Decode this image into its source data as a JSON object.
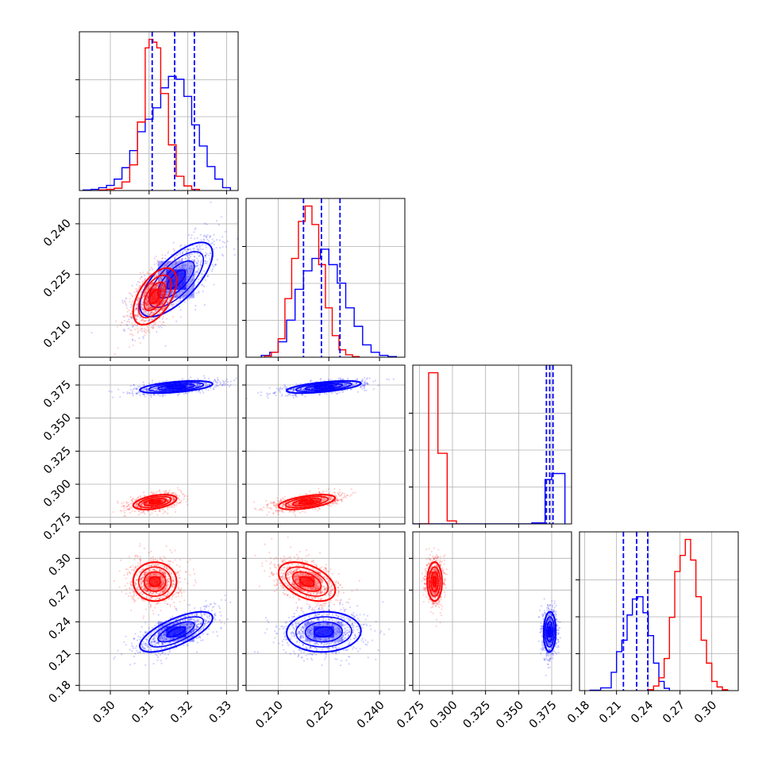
{
  "chart_data": {
    "type": "corner",
    "title": "",
    "parameters": [
      {
        "name": "p0",
        "label": "",
        "range": [
          0.292,
          0.333
        ],
        "ticks": [
          0.3,
          0.31,
          0.32,
          0.33
        ],
        "tick_labels": [
          "0.30",
          "0.31",
          "0.32",
          "0.33"
        ]
      },
      {
        "name": "p1",
        "label": "",
        "range": [
          0.2005,
          0.2475
        ],
        "ticks": [
          0.21,
          0.225,
          0.24
        ],
        "tick_labels": [
          "0.210",
          "0.225",
          "0.240"
        ]
      },
      {
        "name": "p2",
        "label": "",
        "range": [
          0.27,
          0.39
        ],
        "ticks": [
          0.275,
          0.3,
          0.325,
          0.35,
          0.375
        ],
        "tick_labels": [
          "0.275",
          "0.300",
          "0.325",
          "0.350",
          "0.375"
        ]
      },
      {
        "name": "p3",
        "label": "",
        "range": [
          0.175,
          0.325
        ],
        "ticks": [
          0.18,
          0.21,
          0.24,
          0.27,
          0.3
        ],
        "tick_labels": [
          "0.18",
          "0.21",
          "0.24",
          "0.27",
          "0.30"
        ]
      }
    ],
    "series": [
      {
        "name": "blue",
        "color": "#0000ff",
        "means": [
          0.317,
          0.2235,
          0.3735,
          0.2305
        ],
        "sigmas": [
          0.0047,
          0.0055,
          0.0023,
          0.0095
        ],
        "correlations": {
          "0-1": 0.7,
          "0-2": 0.5,
          "1-2": 0.6,
          "0-3": 0.7,
          "1-3": 0.05,
          "2-3": 0.05
        },
        "quantiles": {
          "p0": [
            0.3108,
            0.3166,
            0.3217
          ],
          "p1": [
            0.2175,
            0.2228,
            0.2283
          ],
          "p2": [
            0.371,
            0.3735,
            0.376
          ],
          "p3": [
            0.2165,
            0.229,
            0.2395
          ]
        },
        "histograms": {
          "p0": {
            "edges": [
              0.293,
              0.295,
              0.297,
              0.299,
              0.301,
              0.303,
              0.305,
              0.307,
              0.309,
              0.311,
              0.313,
              0.315,
              0.317,
              0.319,
              0.321,
              0.323,
              0.325,
              0.327,
              0.329,
              0.331
            ],
            "counts": [
              1,
              2,
              5,
              9,
              20,
              40,
              70,
              103,
              125,
              145,
              180,
              200,
              195,
              165,
              115,
              78,
              42,
              20,
              5
            ]
          },
          "p1": {
            "edges": [
              0.205,
              0.2075,
              0.21,
              0.2125,
              0.215,
              0.2175,
              0.22,
              0.2225,
              0.225,
              0.2275,
              0.23,
              0.2325,
              0.235,
              0.2375,
              0.24,
              0.2425,
              0.245
            ],
            "counts": [
              3,
              8,
              25,
              60,
              110,
              140,
              160,
              175,
              150,
              120,
              80,
              50,
              20,
              8,
              3,
              1
            ]
          },
          "p2": {
            "edges": [
              0.27,
              0.28,
              0.29,
              0.3,
              0.31,
              0.32,
              0.33,
              0.34,
              0.35,
              0.36,
              0.37,
              0.375,
              0.38,
              0.385
            ],
            "counts": [
              0,
              0,
              0,
              0,
              0,
              0,
              0,
              0,
              0,
              2,
              88,
              100,
              100
            ]
          },
          "p3": {
            "edges": [
              0.185,
              0.195,
              0.205,
              0.21,
              0.215,
              0.22,
              0.225,
              0.23,
              0.235,
              0.24,
              0.245,
              0.25,
              0.255,
              0.26
            ],
            "counts": [
              1,
              6,
              40,
              85,
              110,
              165,
              200,
              205,
              170,
              120,
              60,
              20,
              5
            ]
          }
        }
      },
      {
        "name": "red",
        "color": "#ff0000",
        "means": [
          0.3115,
          0.2185,
          0.2865,
          0.278
        ],
        "sigmas": [
          0.0028,
          0.0042,
          0.0028,
          0.0092
        ],
        "correlations": {
          "0-1": 0.55,
          "0-2": 0.45,
          "1-2": 0.55,
          "0-3": 0.0,
          "1-3": -0.45,
          "2-3": 0.0
        },
        "histograms": {
          "p0": {
            "edges": [
              0.297,
              0.299,
              0.301,
              0.303,
              0.305,
              0.307,
              0.309,
              0.31,
              0.311,
              0.312,
              0.313,
              0.315,
              0.317,
              0.319,
              0.321,
              0.323
            ],
            "counts": [
              1,
              2,
              4,
              15,
              45,
              120,
              250,
              265,
              260,
              250,
              170,
              80,
              25,
              8,
              2
            ]
          },
          "p1": {
            "edges": [
              0.206,
              0.208,
              0.21,
              0.212,
              0.214,
              0.216,
              0.218,
              0.22,
              0.222,
              0.224,
              0.226,
              0.228,
              0.23,
              0.232,
              0.234
            ],
            "counts": [
              2,
              8,
              30,
              95,
              160,
              220,
              245,
              215,
              150,
              80,
              35,
              12,
              4,
              1
            ]
          },
          "p2": {
            "edges": [
              0.275,
              0.282,
              0.289,
              0.296,
              0.303
            ],
            "counts": [
              0,
              300,
              140,
              6
            ]
          },
          "p3": {
            "edges": [
              0.24,
              0.245,
              0.25,
              0.255,
              0.26,
              0.265,
              0.27,
              0.275,
              0.28,
              0.285,
              0.29,
              0.295,
              0.3,
              0.305,
              0.31,
              0.315
            ],
            "counts": [
              2,
              10,
              28,
              70,
              160,
              260,
              295,
              330,
              285,
              205,
              110,
              60,
              20,
              8,
              2
            ]
          }
        }
      }
    ],
    "grid": true,
    "contour_levels": [
      0.5,
      1.0,
      1.5,
      2.0
    ]
  }
}
